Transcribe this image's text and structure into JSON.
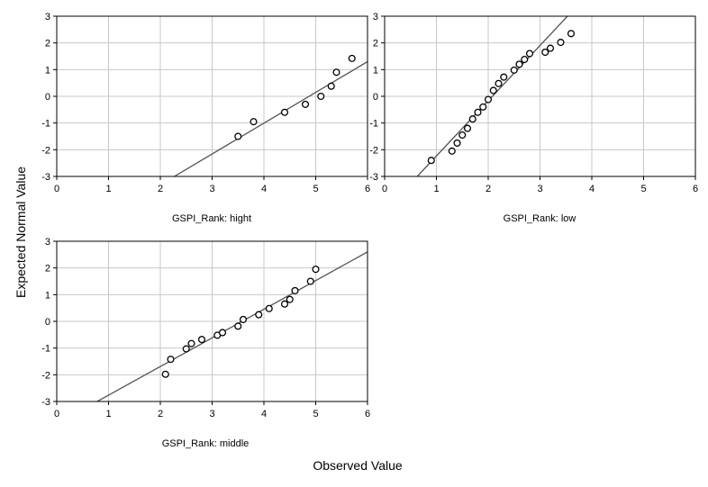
{
  "figure": {
    "xlabel": "Observed Value",
    "ylabel": "Expected Normal Value"
  },
  "style": {
    "grid_color": "#c8c8c8",
    "frame_color": "#000000",
    "line_color": "#555555",
    "marker_stroke": "#000000",
    "marker_fill": "#ffffff"
  },
  "chart_data": [
    {
      "type": "scatter",
      "title": "GSPI_Rank: hight",
      "xlim": [
        0,
        6
      ],
      "ylim": [
        -3,
        3
      ],
      "xticks": [
        0,
        1,
        2,
        3,
        4,
        5,
        6
      ],
      "yticks": [
        -3,
        -2,
        -1,
        0,
        1,
        2,
        3
      ],
      "grid": true,
      "points": {
        "x": [
          3.5,
          3.8,
          4.4,
          4.8,
          5.1,
          5.3,
          5.4,
          5.7
        ],
        "y": [
          -1.5,
          -0.95,
          -0.6,
          -0.3,
          0.0,
          0.38,
          0.9,
          1.42
        ]
      },
      "fit_line": {
        "x": [
          2.27,
          6.0
        ],
        "y": [
          -3.0,
          1.3
        ]
      }
    },
    {
      "type": "scatter",
      "title": "GSPI_Rank: low",
      "xlim": [
        0,
        6
      ],
      "ylim": [
        -3,
        3
      ],
      "xticks": [
        0,
        1,
        2,
        3,
        4,
        5,
        6
      ],
      "yticks": [
        -3,
        -2,
        -1,
        0,
        1,
        2,
        3
      ],
      "grid": true,
      "points": {
        "x": [
          0.9,
          1.3,
          1.4,
          1.5,
          1.6,
          1.7,
          1.8,
          1.9,
          2.0,
          2.1,
          2.2,
          2.3,
          2.5,
          2.6,
          2.7,
          2.8,
          3.1,
          3.2,
          3.4,
          3.6
        ],
        "y": [
          -2.4,
          -2.05,
          -1.75,
          -1.45,
          -1.2,
          -0.85,
          -0.6,
          -0.4,
          -0.12,
          0.22,
          0.48,
          0.72,
          0.98,
          1.2,
          1.38,
          1.6,
          1.65,
          1.8,
          2.02,
          2.35
        ]
      },
      "fit_line": {
        "x": [
          0.63,
          3.53
        ],
        "y": [
          -3.0,
          3.0
        ]
      }
    },
    {
      "type": "scatter",
      "title": "GSPI_Rank: middle",
      "xlim": [
        0,
        6
      ],
      "ylim": [
        -3,
        3
      ],
      "xticks": [
        0,
        1,
        2,
        3,
        4,
        5,
        6
      ],
      "yticks": [
        -3,
        -2,
        -1,
        0,
        1,
        2,
        3
      ],
      "grid": true,
      "points": {
        "x": [
          2.1,
          2.2,
          2.5,
          2.6,
          2.8,
          3.1,
          3.2,
          3.5,
          3.6,
          3.9,
          4.1,
          4.4,
          4.5,
          4.6,
          4.9,
          5.0
        ],
        "y": [
          -1.98,
          -1.42,
          -1.03,
          -0.83,
          -0.68,
          -0.52,
          -0.42,
          -0.18,
          0.07,
          0.25,
          0.48,
          0.65,
          0.82,
          1.15,
          1.5,
          1.95
        ]
      },
      "fit_line": {
        "x": [
          0.78,
          6.0
        ],
        "y": [
          -3.0,
          2.6
        ]
      }
    }
  ]
}
